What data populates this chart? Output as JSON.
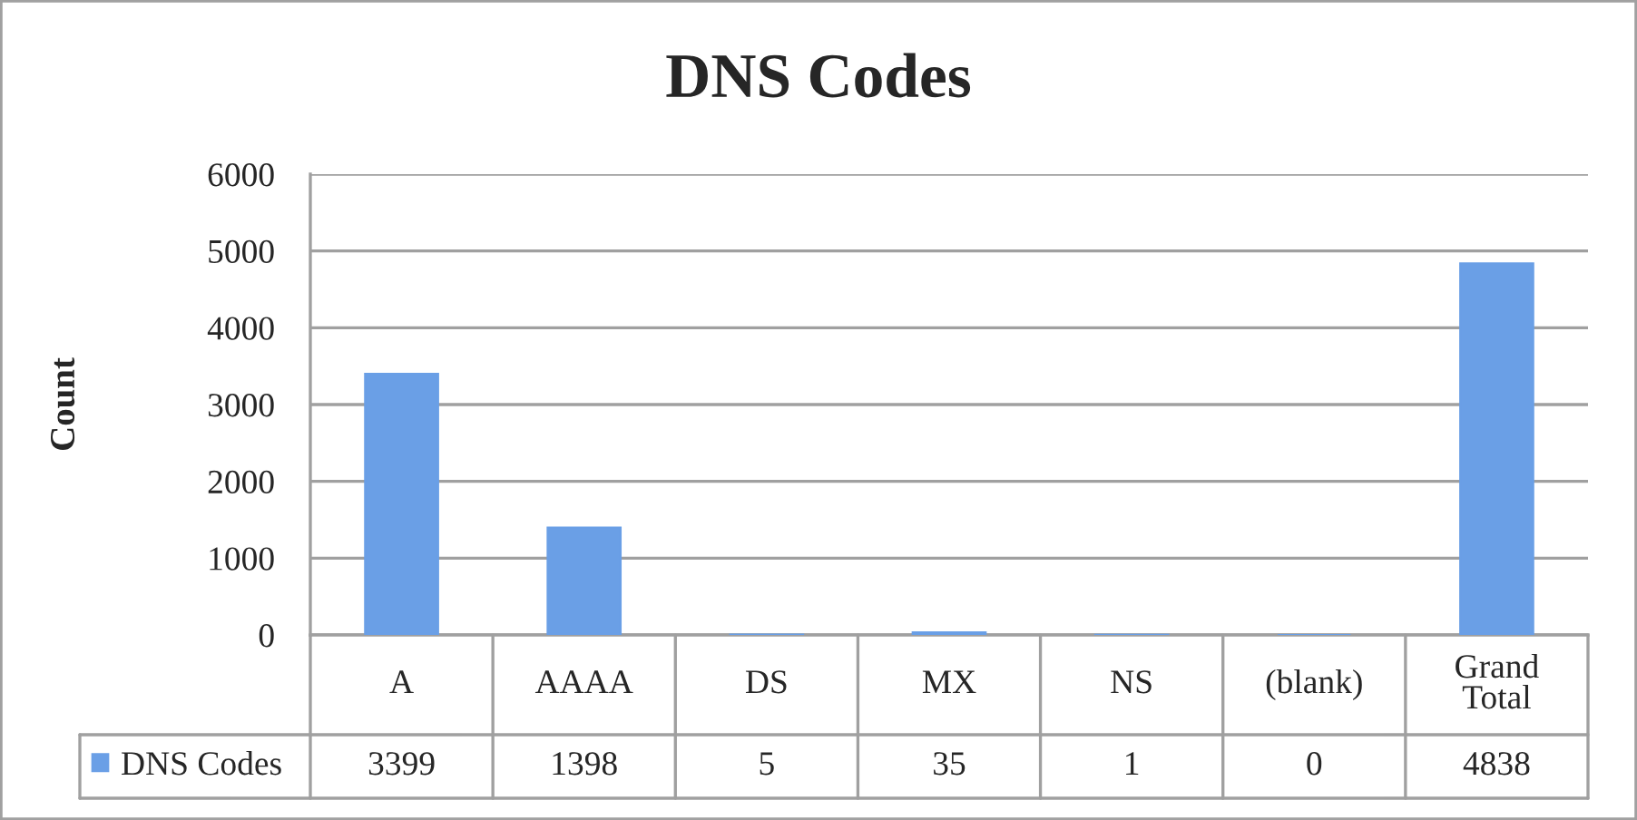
{
  "chart_data": {
    "type": "bar",
    "title": "DNS Codes",
    "ylabel": "Count",
    "categories": [
      "A",
      "AAAA",
      "DS",
      "MX",
      "NS",
      "(blank)",
      "Grand Total"
    ],
    "series": [
      {
        "name": "DNS Codes",
        "color": "#6a9fe6",
        "values": [
          3399,
          1398,
          5,
          35,
          1,
          0,
          4838
        ]
      }
    ],
    "ylim": [
      0,
      6000
    ],
    "yticks": [
      0,
      1000,
      2000,
      3000,
      4000,
      5000,
      6000
    ],
    "grid": "y",
    "legend": "bottom left",
    "data_labels": true
  }
}
